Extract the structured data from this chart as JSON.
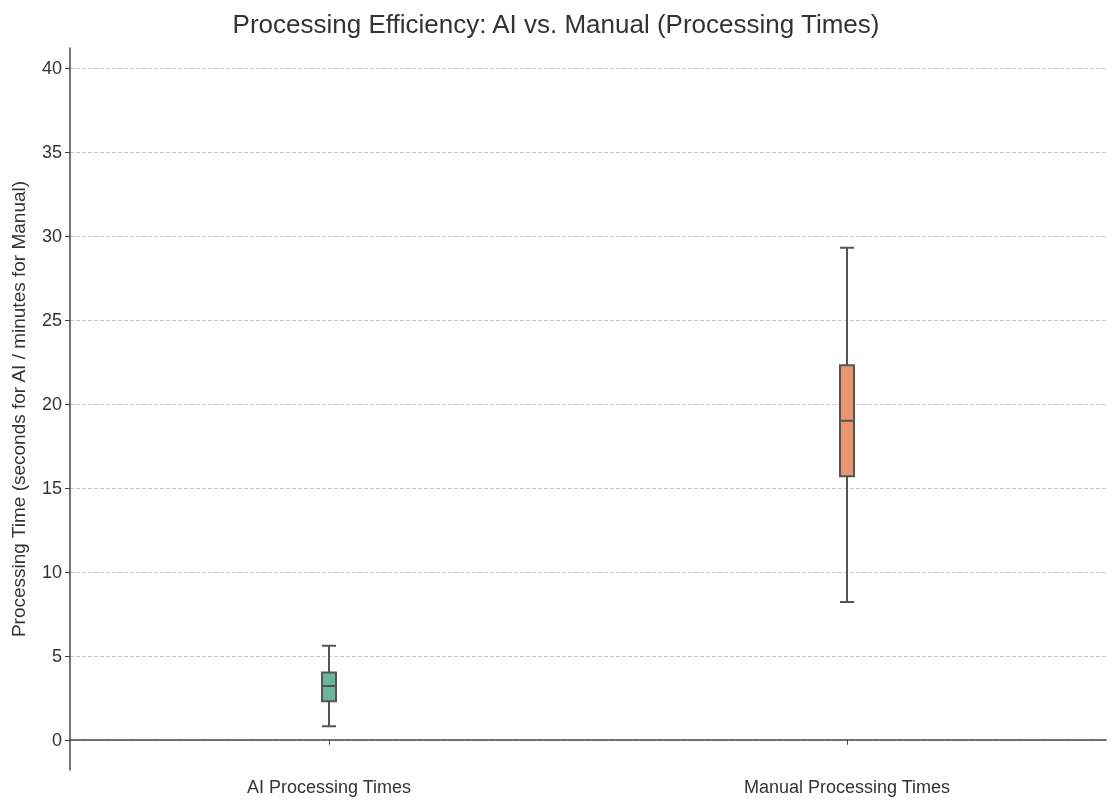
{
  "chart_data": {
    "type": "box",
    "title": "Processing Efficiency: AI vs. Manual (Processing Times)",
    "ylabel": "Processing Time (seconds for AI / minutes for Manual)",
    "categories": [
      "AI Processing Times",
      "Manual Processing Times"
    ],
    "boxes": [
      {
        "low": 0.8,
        "q1": 2.3,
        "median": 3.2,
        "q3": 4.0,
        "high": 5.6
      },
      {
        "low": 8.2,
        "q1": 15.7,
        "median": 19.0,
        "q3": 22.3,
        "high": 29.3
      }
    ],
    "colors": [
      "#6bb59d",
      "#e9956f"
    ],
    "ylim": [
      -1.8,
      41.2
    ],
    "yticks": [
      0,
      5,
      10,
      15,
      20,
      25,
      30,
      35,
      40
    ],
    "grid": "y"
  }
}
